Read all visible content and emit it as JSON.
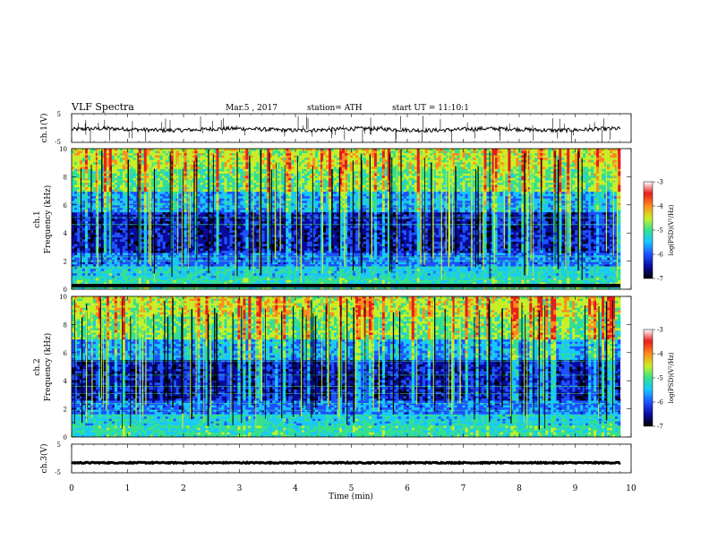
{
  "header": {
    "title": "VLF Spectra",
    "date": "Mar.5 , 2017",
    "station": "station= ATH",
    "start": "start UT = 11:10:1"
  },
  "colors": {
    "spectrogram_scale": [
      "#000000",
      "#0a0a9a",
      "#1e52ff",
      "#19c8ff",
      "#35e08f",
      "#c8f028",
      "#ff8c1e",
      "#e61e1e",
      "#ffffff"
    ],
    "trace": "#000000"
  },
  "chart_data": [
    {
      "type": "line",
      "name": "ch1-voltage",
      "ylabel": "ch.1(V)",
      "ylim": [
        -5,
        5
      ],
      "yticks": [
        "5",
        "-5"
      ],
      "xlim": [
        0,
        10
      ],
      "baseline": -0.5,
      "grid": false
    },
    {
      "type": "heatmap",
      "name": "ch1-spectrogram",
      "ylabel_top": "ch.1",
      "ylabel": "Frequency (kHz)",
      "ylim": [
        0,
        10
      ],
      "yticks": [
        "0",
        "2",
        "4",
        "6",
        "8",
        "10"
      ],
      "xlim": [
        0,
        10
      ],
      "colorbar": {
        "label": "log(PSD)(V²/Hz)",
        "range": [
          -7,
          -3
        ],
        "ticks": [
          "-3",
          "-4",
          "-5",
          "-6",
          "-7"
        ]
      }
    },
    {
      "type": "heatmap",
      "name": "ch2-spectrogram",
      "ylabel_top": "ch.2",
      "ylabel": "Frequency (kHz)",
      "ylim": [
        0,
        10
      ],
      "yticks": [
        "0",
        "2",
        "4",
        "6",
        "8",
        "10"
      ],
      "xlim": [
        0,
        10
      ],
      "colorbar": {
        "label": "log(PSD)(V²/Hz)",
        "range": [
          -7,
          -3
        ],
        "ticks": [
          "-3",
          "-4",
          "-5",
          "-6",
          "-7"
        ]
      }
    },
    {
      "type": "line",
      "name": "ch3-voltage",
      "ylabel": "ch.3(V)",
      "ylim": [
        -5,
        5
      ],
      "yticks": [
        "5",
        "-5"
      ],
      "xlim": [
        0,
        10
      ],
      "xlabel": "Time (min)",
      "xticks": [
        "0",
        "1",
        "2",
        "3",
        "4",
        "5",
        "6",
        "7",
        "8",
        "9",
        "10"
      ],
      "baseline": -1.5,
      "grid": false
    }
  ]
}
